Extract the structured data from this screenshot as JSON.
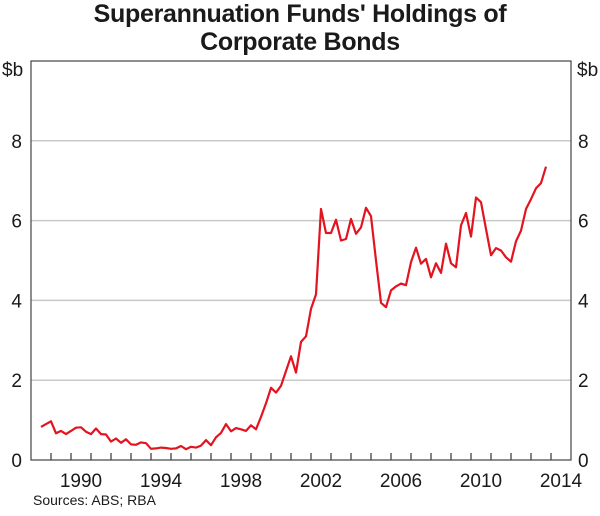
{
  "chart_data": {
    "type": "line",
    "title": "Superannuation Funds' Holdings of Corporate Bonds",
    "ylabel_left": "$b",
    "ylabel_right": "$b",
    "xlabel": "",
    "xlim": [
      1988,
      2015
    ],
    "ylim": [
      0,
      10
    ],
    "yticks": [
      0,
      2,
      4,
      6,
      8
    ],
    "xtick_labels": [
      "1990",
      "1994",
      "1998",
      "2002",
      "2006",
      "2010",
      "2014"
    ],
    "grid": true,
    "line_color": "#e3141f",
    "series": [
      {
        "x": [
          1988.5,
          1988.75,
          1989.0,
          1989.25,
          1989.5,
          1989.75,
          1990.0,
          1990.25,
          1990.5,
          1990.75,
          1991.0,
          1991.25,
          1991.5,
          1991.75,
          1992.0,
          1992.25,
          1992.5,
          1992.75,
          1993.0,
          1993.25,
          1993.5,
          1993.75,
          1994.0,
          1994.25,
          1994.5,
          1994.75,
          1995.0,
          1995.25,
          1995.5,
          1995.75,
          1996.0,
          1996.25,
          1996.5,
          1996.75,
          1997.0,
          1997.25,
          1997.5,
          1997.75,
          1998.0,
          1998.25,
          1998.5,
          1998.75,
          1999.0,
          1999.25,
          1999.5,
          1999.75,
          2000.0,
          2000.25,
          2000.5,
          2000.75,
          2001.0,
          2001.25,
          2001.5,
          2001.75,
          2002.0,
          2002.25,
          2002.5,
          2002.75,
          2003.0,
          2003.25,
          2003.5,
          2003.75,
          2004.0,
          2004.25,
          2004.5,
          2004.75,
          2005.0,
          2005.25,
          2005.5,
          2005.75,
          2006.0,
          2006.25,
          2006.5,
          2006.75,
          2007.0,
          2007.25,
          2007.5,
          2007.75,
          2008.0,
          2008.25,
          2008.5,
          2008.75,
          2009.0,
          2009.25,
          2009.5,
          2009.75,
          2010.0,
          2010.25,
          2010.5,
          2010.75,
          2011.0,
          2011.25,
          2011.5,
          2011.75,
          2012.0,
          2012.25,
          2012.5,
          2012.75,
          2013.0,
          2013.25,
          2013.5,
          2013.75
        ],
        "values": [
          0.83,
          0.9,
          0.97,
          0.67,
          0.73,
          0.65,
          0.73,
          0.81,
          0.82,
          0.71,
          0.65,
          0.79,
          0.65,
          0.64,
          0.46,
          0.54,
          0.43,
          0.52,
          0.39,
          0.38,
          0.44,
          0.42,
          0.28,
          0.29,
          0.31,
          0.3,
          0.28,
          0.29,
          0.35,
          0.27,
          0.33,
          0.31,
          0.36,
          0.5,
          0.37,
          0.57,
          0.68,
          0.9,
          0.72,
          0.8,
          0.77,
          0.73,
          0.87,
          0.77,
          1.08,
          1.42,
          1.81,
          1.69,
          1.86,
          2.23,
          2.6,
          2.19,
          2.96,
          3.1,
          3.79,
          4.15,
          6.29,
          5.69,
          5.69,
          6.02,
          5.5,
          5.54,
          6.04,
          5.67,
          5.83,
          6.32,
          6.11,
          5.0,
          3.94,
          3.83,
          4.25,
          4.35,
          4.42,
          4.38,
          4.96,
          5.32,
          4.92,
          5.04,
          4.58,
          4.93,
          4.69,
          5.42,
          4.93,
          4.83,
          5.88,
          6.19,
          5.6,
          6.58,
          6.46,
          5.79,
          5.13,
          5.31,
          5.25,
          5.08,
          4.97,
          5.48,
          5.75,
          6.29,
          6.54,
          6.81,
          6.94,
          7.35
        ]
      }
    ]
  },
  "footer": {
    "sources": "Sources: ABS; RBA"
  }
}
